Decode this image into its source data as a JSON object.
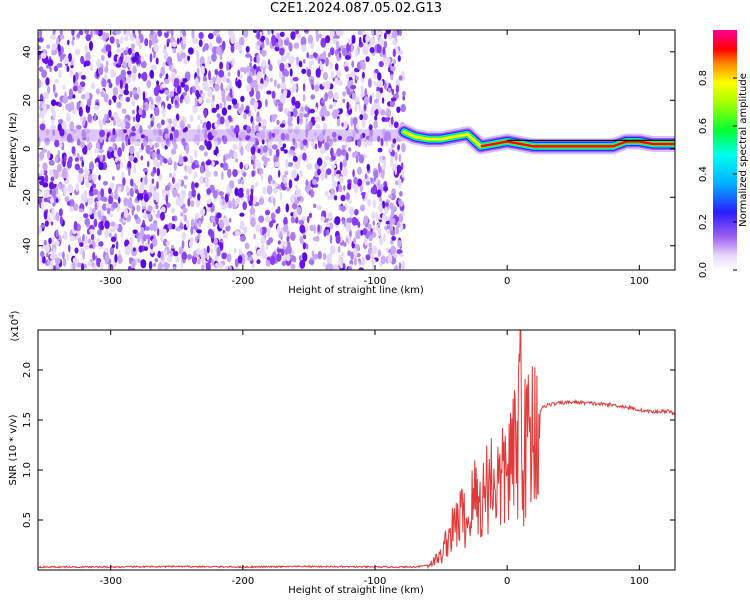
{
  "title": "C2E1.2024.087.05.02.G13",
  "chart_data": [
    {
      "type": "heatmap",
      "xlabel": "Height of straight line (km)",
      "ylabel": "Frequency (Hz)",
      "xlim": [
        -355,
        127
      ],
      "ylim": [
        -50,
        49
      ],
      "xticks": [
        -300,
        -200,
        -100,
        0,
        100
      ],
      "yticks": [
        -40,
        -20,
        0,
        20,
        40
      ],
      "colorbar": {
        "label": "Normalized spectral amplitude",
        "range": [
          0,
          1
        ],
        "ticks": [
          "0.0",
          "0.2",
          "0.4",
          "0.6",
          "0.8"
        ]
      },
      "noise_region_x": [
        -355,
        -78
      ],
      "signal_track": {
        "x": [
          -78,
          -70,
          -60,
          -50,
          -40,
          -30,
          -20,
          -10,
          0,
          10,
          20,
          40,
          60,
          80,
          90,
          100,
          110,
          127
        ],
        "freq_hz": [
          7,
          5,
          4,
          4,
          5,
          6,
          1,
          2,
          3,
          2,
          1,
          1,
          1,
          1,
          3,
          3,
          2,
          2
        ]
      },
      "colors": [
        "#ffffff",
        "#c9a8f5",
        "#7a1ff0",
        "#2a1cff",
        "#00e5ff",
        "#00ff33",
        "#ffff00",
        "#ff0000",
        "#ff0099"
      ]
    },
    {
      "type": "line",
      "xlabel": "Height of straight line (km)",
      "ylabel": "SNR (10 * v/v)",
      "yscale_label": "(x10",
      "yscale_exponent": "4",
      "yscale_close": ")",
      "xlim": [
        -355,
        127
      ],
      "ylim": [
        0,
        24000
      ],
      "xticks": [
        -300,
        -200,
        -100,
        0,
        100
      ],
      "yticks": [
        5000,
        10000,
        15000,
        20000
      ],
      "ytick_labels": [
        "0.5",
        "1.0",
        "1.5",
        "2.0"
      ],
      "color": "#e03a3a",
      "x": [
        -355,
        -300,
        -250,
        -200,
        -150,
        -100,
        -70,
        -60,
        -50,
        -45,
        -40,
        -35,
        -30,
        -25,
        -20,
        -15,
        -10,
        -5,
        0,
        5,
        8,
        10,
        12,
        15,
        20,
        25,
        30,
        40,
        50,
        60,
        70,
        80,
        90,
        100,
        110,
        120,
        127
      ],
      "y": [
        300,
        300,
        350,
        300,
        350,
        300,
        300,
        500,
        1500,
        3500,
        4500,
        6000,
        5000,
        8000,
        7000,
        9500,
        10000,
        9000,
        11000,
        12000,
        13000,
        22000,
        12000,
        14000,
        15500,
        16000,
        16500,
        16700,
        16800,
        16700,
        16600,
        16500,
        16300,
        16000,
        15800,
        15900,
        15700
      ]
    }
  ]
}
